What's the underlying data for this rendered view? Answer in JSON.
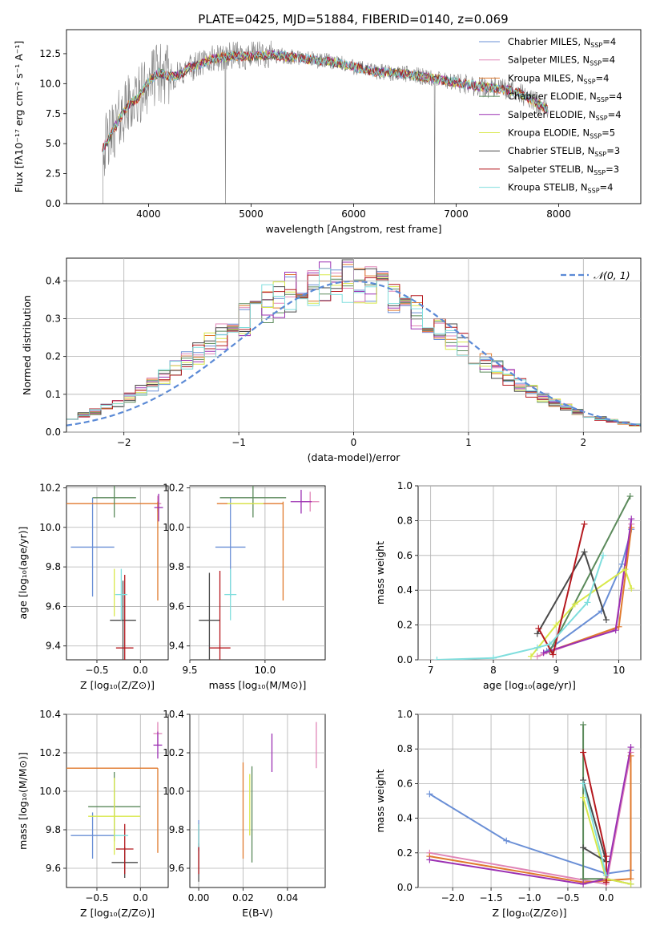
{
  "figure": {
    "title": "PLATE=0425, MJD=51884, FIBERID=0140, z=0.069"
  },
  "colors": {
    "Chabrier MILES": "#6a8fd6",
    "Salpeter MILES": "#e085b7",
    "Kroupa MILES": "#e07a2d",
    "Chabrier ELODIE": "#5b8a5b",
    "Salpeter ELODIE": "#9b30b3",
    "Kroupa ELODIE": "#d8e84a",
    "Chabrier STELIB": "#4a4a4a",
    "Salpeter STELIB": "#b5191f",
    "Kroupa STELIB": "#7fdedd",
    "data": "#808080",
    "normal": "#5b8ad6"
  },
  "chart_data": [
    {
      "id": "spectrum",
      "type": "line",
      "title": "PLATE=0425, MJD=51884, FIBERID=0140, z=0.069",
      "xlabel": "wavelength [Angstrom, rest frame]",
      "ylabel": "Flux [fλ10⁻¹⁷ erg cm⁻² s⁻¹ A⁻¹]",
      "xlim": [
        3200,
        8800
      ],
      "ylim": [
        0,
        14.5
      ],
      "xticks": [
        4000,
        5000,
        6000,
        7000,
        8000
      ],
      "yticks": [
        0.0,
        2.5,
        5.0,
        7.5,
        10.0,
        12.5
      ],
      "legend_position": "top-right",
      "continuum": {
        "x": [
          3550,
          3600,
          3700,
          3800,
          3900,
          4000,
          4100,
          4200,
          4300,
          4400,
          4500,
          4600,
          4800,
          5000,
          5200,
          5400,
          5600,
          5800,
          6000,
          6200,
          6400,
          6600,
          6800,
          7000,
          7200,
          7400,
          7600,
          7800,
          7900
        ],
        "y": [
          4.5,
          5.2,
          6.8,
          8.2,
          8.8,
          10.2,
          10.9,
          10.6,
          10.7,
          11.3,
          11.6,
          12.0,
          12.3,
          12.3,
          12.4,
          12.2,
          12.0,
          11.8,
          11.4,
          11.0,
          10.9,
          10.7,
          10.4,
          10.1,
          9.8,
          9.6,
          9.3,
          8.3,
          7.8
        ]
      },
      "legend": [
        "Chabrier MILES, N_SSP=4",
        "Salpeter MILES, N_SSP=4",
        "Kroupa MILES, N_SSP=4",
        "Chabrier ELODIE, N_SSP=4",
        "Salpeter ELODIE, N_SSP=4",
        "Kroupa ELODIE, N_SSP=5",
        "Chabrier STELIB, N_SSP=3",
        "Salpeter STELIB, N_SSP=3",
        "Kroupa STELIB, N_SSP=4"
      ]
    },
    {
      "id": "residuals",
      "type": "line",
      "xlabel": "(data-model)/error",
      "ylabel": "Normed distribution",
      "xlim": [
        -2.5,
        2.5
      ],
      "ylim": [
        0,
        0.46
      ],
      "xticks": [
        -2,
        -1,
        0,
        1,
        2
      ],
      "yticks": [
        0.0,
        0.1,
        0.2,
        0.3,
        0.4
      ],
      "legend": [
        "𝒩(0, 1)"
      ],
      "legend_position": "top-right",
      "bin_width": 0.1,
      "normal": {
        "mu": 0,
        "sigma": 1
      }
    },
    {
      "id": "z-age",
      "type": "scatter",
      "xlabel": "Z [log₁₀(Z/Z⊙)]",
      "ylabel": "age  [log₁₀(age/yr)]",
      "xlim": [
        -0.85,
        0.32
      ],
      "ylim": [
        9.33,
        10.21
      ],
      "xticks": [
        -0.5,
        0.0
      ],
      "xticklabels": [
        "−0.5",
        "0.0"
      ],
      "yticks": [
        9.4,
        9.6,
        9.8,
        10.0,
        10.2
      ],
      "points": [
        {
          "model": "Chabrier MILES",
          "x": -0.55,
          "y": 9.9,
          "xerr": 0.25,
          "yerr": 0.25
        },
        {
          "model": "Salpeter MILES",
          "x": 0.2,
          "y": 10.12,
          "xerr": 0.04,
          "yerr": 0.04
        },
        {
          "model": "Kroupa MILES",
          "x": -0.35,
          "y": 10.12,
          "xerr": 0.55,
          "yerr": 0.0
        },
        {
          "model": "Kroupa MILES",
          "x": 0.2,
          "y": 9.88,
          "xerr": 0.0,
          "yerr": 0.25
        },
        {
          "model": "Chabrier ELODIE",
          "x": -0.3,
          "y": 10.15,
          "xerr": 0.25,
          "yerr": 0.1
        },
        {
          "model": "Salpeter ELODIE",
          "x": 0.21,
          "y": 10.1,
          "xerr": 0.05,
          "yerr": 0.07
        },
        {
          "model": "Kroupa ELODIE",
          "x": -0.3,
          "y": 9.67,
          "xerr": 0.0,
          "yerr": 0.12
        },
        {
          "model": "Chabrier STELIB",
          "x": -0.2,
          "y": 9.53,
          "xerr": 0.15,
          "yerr": 0.2
        },
        {
          "model": "Salpeter STELIB",
          "x": -0.18,
          "y": 9.39,
          "xerr": 0.1,
          "yerr": 0.37
        },
        {
          "model": "Kroupa STELIB",
          "x": -0.22,
          "y": 9.66,
          "xerr": 0.07,
          "yerr": 0.13
        }
      ]
    },
    {
      "id": "mass-age",
      "type": "scatter",
      "xlabel": "mass [log₁₀(M/M⊙)]",
      "ylabel": "",
      "xlim": [
        9.5,
        10.4
      ],
      "ylim": [
        9.33,
        10.21
      ],
      "xticks": [
        9.5,
        10.0
      ],
      "yticks": [
        9.4,
        9.6,
        9.8,
        10.0,
        10.2
      ],
      "points": [
        {
          "model": "Chabrier MILES",
          "x": 9.77,
          "y": 9.9,
          "xerr": 0.1,
          "yerr": 0.25
        },
        {
          "model": "Salpeter MILES",
          "x": 10.3,
          "y": 10.13,
          "xerr": 0.06,
          "yerr": 0.05
        },
        {
          "model": "Kroupa MILES",
          "x": 9.9,
          "y": 10.12,
          "xerr": 0.22,
          "yerr": 0.0
        },
        {
          "model": "Kroupa MILES",
          "x": 10.12,
          "y": 9.88,
          "xerr": 0.0,
          "yerr": 0.25
        },
        {
          "model": "Chabrier ELODIE",
          "x": 9.92,
          "y": 10.15,
          "xerr": 0.22,
          "yerr": 0.1
        },
        {
          "model": "Salpeter ELODIE",
          "x": 10.24,
          "y": 10.13,
          "xerr": 0.07,
          "yerr": 0.06
        },
        {
          "model": "Kroupa ELODIE",
          "x": 9.87,
          "y": 10.12,
          "xerr": 0.12,
          "yerr": 0.0
        },
        {
          "model": "Chabrier STELIB",
          "x": 9.63,
          "y": 9.53,
          "xerr": 0.07,
          "yerr": 0.24
        },
        {
          "model": "Salpeter STELIB",
          "x": 9.7,
          "y": 9.39,
          "xerr": 0.07,
          "yerr": 0.39
        },
        {
          "model": "Kroupa STELIB",
          "x": 9.77,
          "y": 9.66,
          "xerr": 0.04,
          "yerr": 0.13
        }
      ]
    },
    {
      "id": "age-massweight",
      "type": "line",
      "xlabel": "age  [log₁₀(age/yr)]",
      "ylabel": "mass weight",
      "xlim": [
        6.8,
        10.35
      ],
      "ylim": [
        0,
        1.0
      ],
      "xticks": [
        7,
        8,
        9,
        10
      ],
      "yticks": [
        0.0,
        0.2,
        0.4,
        0.6,
        0.8,
        1.0
      ],
      "series": [
        {
          "model": "Chabrier MILES",
          "x": [
            8.85,
            9.72,
            10.05,
            10.2
          ],
          "y": [
            0.05,
            0.28,
            0.55,
            0.75
          ]
        },
        {
          "model": "Salpeter MILES",
          "x": [
            8.7,
            9.95,
            10.2
          ],
          "y": [
            0.02,
            0.18,
            0.78
          ]
        },
        {
          "model": "Kroupa MILES",
          "x": [
            8.9,
            10.0,
            10.2
          ],
          "y": [
            0.05,
            0.19,
            0.76
          ]
        },
        {
          "model": "Chabrier ELODIE",
          "x": [
            8.9,
            10.18
          ],
          "y": [
            0.05,
            0.94
          ]
        },
        {
          "model": "Salpeter ELODIE",
          "x": [
            8.8,
            9.95,
            10.2
          ],
          "y": [
            0.04,
            0.17,
            0.81
          ]
        },
        {
          "model": "Kroupa ELODIE",
          "x": [
            8.6,
            9.0,
            9.3,
            10.1,
            10.2
          ],
          "y": [
            0.02,
            0.2,
            0.32,
            0.52,
            0.41
          ]
        },
        {
          "model": "Chabrier STELIB",
          "x": [
            8.7,
            9.45,
            9.8
          ],
          "y": [
            0.15,
            0.62,
            0.23
          ]
        },
        {
          "model": "Salpeter STELIB",
          "x": [
            8.72,
            8.95,
            9.45
          ],
          "y": [
            0.18,
            0.03,
            0.78
          ]
        },
        {
          "model": "Kroupa STELIB",
          "x": [
            7.1,
            8.0,
            8.7,
            8.9,
            9.5,
            9.75
          ],
          "y": [
            0.0,
            0.01,
            0.07,
            0.09,
            0.33,
            0.6
          ]
        }
      ]
    },
    {
      "id": "z-mass",
      "type": "scatter",
      "xlabel": "Z [log₁₀(Z/Z⊙)]",
      "ylabel": "mass [log₁₀(M/M⊙)]",
      "xlim": [
        -0.85,
        0.32
      ],
      "ylim": [
        9.5,
        10.4
      ],
      "xticks": [
        -0.5,
        0.0
      ],
      "xticklabels": [
        "−0.5",
        "0.0"
      ],
      "yticks": [
        9.6,
        9.8,
        10.0,
        10.2,
        10.4
      ],
      "points": [
        {
          "model": "Chabrier MILES",
          "x": -0.55,
          "y": 9.77,
          "xerr": 0.25,
          "yerr": 0.12
        },
        {
          "model": "Salpeter MILES",
          "x": 0.2,
          "y": 10.3,
          "xerr": 0.05,
          "yerr": 0.06
        },
        {
          "model": "Kroupa MILES",
          "x": -0.35,
          "y": 10.12,
          "xerr": 0.55,
          "yerr": 0.0
        },
        {
          "model": "Kroupa MILES",
          "x": 0.2,
          "y": 9.9,
          "xerr": 0.0,
          "yerr": 0.22
        },
        {
          "model": "Chabrier ELODIE",
          "x": -0.3,
          "y": 9.92,
          "xerr": 0.3,
          "yerr": 0.18
        },
        {
          "model": "Salpeter ELODIE",
          "x": 0.2,
          "y": 10.24,
          "xerr": 0.05,
          "yerr": 0.07
        },
        {
          "model": "Kroupa ELODIE",
          "x": -0.3,
          "y": 9.87,
          "xerr": 0.3,
          "yerr": 0.2
        },
        {
          "model": "Chabrier STELIB",
          "x": -0.18,
          "y": 9.63,
          "xerr": 0.15,
          "yerr": 0.08
        },
        {
          "model": "Salpeter STELIB",
          "x": -0.18,
          "y": 9.7,
          "xerr": 0.1,
          "yerr": 0.13
        },
        {
          "model": "Kroupa STELIB",
          "x": -0.22,
          "y": 9.77,
          "xerr": 0.08,
          "yerr": 0.0
        }
      ]
    },
    {
      "id": "ebv-mass",
      "type": "scatter",
      "xlabel": "E(B-V)",
      "ylabel": "",
      "xlim": [
        -0.004,
        0.057
      ],
      "ylim": [
        9.5,
        10.4
      ],
      "xticks": [
        0.0,
        0.02,
        0.04
      ],
      "xticklabels": [
        "0.00",
        "0.02",
        "0.04"
      ],
      "yticks": [
        9.6,
        9.8,
        10.0,
        10.2,
        10.4
      ],
      "points": [
        {
          "model": "Chabrier MILES",
          "x": 0.0,
          "y": 9.77,
          "xerr": 0,
          "yerr": 0.08
        },
        {
          "model": "Salpeter MILES",
          "x": 0.053,
          "y": 10.24,
          "xerr": 0,
          "yerr": 0.12
        },
        {
          "model": "Kroupa MILES",
          "x": 0.02,
          "y": 9.9,
          "xerr": 0,
          "yerr": 0.25
        },
        {
          "model": "Chabrier ELODIE",
          "x": 0.024,
          "y": 9.88,
          "xerr": 0,
          "yerr": 0.25
        },
        {
          "model": "Salpeter ELODIE",
          "x": 0.033,
          "y": 10.2,
          "xerr": 0,
          "yerr": 0.1
        },
        {
          "model": "Kroupa ELODIE",
          "x": 0.023,
          "y": 9.93,
          "xerr": 0,
          "yerr": 0.16
        },
        {
          "model": "Chabrier STELIB",
          "x": 0.0,
          "y": 9.63,
          "xerr": 0,
          "yerr": 0.1
        },
        {
          "model": "Salpeter STELIB",
          "x": 0.0,
          "y": 9.7,
          "xerr": 0,
          "yerr": 0.13
        },
        {
          "model": "Kroupa STELIB",
          "x": 0.0,
          "y": 9.77,
          "xerr": 0,
          "yerr": 0.06
        }
      ]
    },
    {
      "id": "z-massweight",
      "type": "line",
      "xlabel": "Z [log₁₀(Z/Z⊙)]",
      "ylabel": "mass weight",
      "xlim": [
        -2.45,
        0.45
      ],
      "ylim": [
        0,
        1.0
      ],
      "xticks": [
        -2.0,
        -1.5,
        -1.0,
        -0.5,
        0.0
      ],
      "xticklabels": [
        "−2.0",
        "−1.5",
        "−1.0",
        "−0.5",
        "0.0"
      ],
      "yticks": [
        0.0,
        0.2,
        0.4,
        0.6,
        0.8,
        1.0
      ],
      "series": [
        {
          "model": "Chabrier MILES",
          "x": [
            -2.3,
            -1.3,
            0.0,
            0.32
          ],
          "y": [
            0.54,
            0.27,
            0.08,
            0.1
          ]
        },
        {
          "model": "Salpeter MILES",
          "x": [
            -2.3,
            0.0,
            0.32
          ],
          "y": [
            0.2,
            0.02,
            0.78
          ]
        },
        {
          "model": "Kroupa MILES",
          "x": [
            -2.3,
            -0.3,
            0.32,
            0.32
          ],
          "y": [
            0.18,
            0.03,
            0.05,
            0.76
          ]
        },
        {
          "model": "Chabrier ELODIE",
          "x": [
            -0.3,
            -0.3,
            0.0,
            0.32
          ],
          "y": [
            0.94,
            0.05,
            0.05,
            0.02
          ]
        },
        {
          "model": "Salpeter ELODIE",
          "x": [
            -2.3,
            -0.3,
            0.0,
            0.32
          ],
          "y": [
            0.16,
            0.02,
            0.05,
            0.81
          ]
        },
        {
          "model": "Kroupa ELODIE",
          "x": [
            -0.3,
            0.0,
            0.32
          ],
          "y": [
            0.52,
            0.05,
            0.02
          ]
        },
        {
          "model": "Chabrier STELIB",
          "x": [
            -0.3,
            0.0,
            -0.3,
            0.0
          ],
          "y": [
            0.62,
            0.15,
            0.23,
            0.15
          ]
        },
        {
          "model": "Salpeter STELIB",
          "x": [
            -0.3,
            0.0,
            0.0
          ],
          "y": [
            0.78,
            0.18,
            0.03
          ]
        },
        {
          "model": "Kroupa STELIB",
          "x": [
            -0.3,
            0.0
          ],
          "y": [
            0.6,
            0.07
          ]
        }
      ]
    }
  ]
}
